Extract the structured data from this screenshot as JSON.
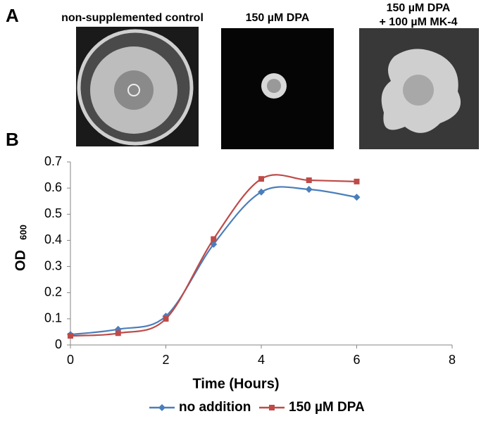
{
  "panel_a": {
    "label": "A",
    "images": [
      {
        "caption": [
          "non-supplemented control"
        ]
      },
      {
        "caption": [
          "150 µM DPA"
        ]
      },
      {
        "caption": [
          "150 µM DPA",
          "+ 100 µM MK-4"
        ]
      }
    ]
  },
  "chart_data": {
    "type": "line",
    "panel_label": "B",
    "xlabel": "Time (Hours)",
    "ylabel": "OD",
    "ylabel_sub": "600",
    "x": [
      0,
      1,
      2,
      3,
      4,
      5,
      6
    ],
    "series": [
      {
        "name": "no addition",
        "color": "#4a7ebb",
        "marker": "diamond",
        "values": [
          0.04,
          0.06,
          0.11,
          0.385,
          0.585,
          0.595,
          0.565
        ]
      },
      {
        "name": "150 µM DPA",
        "color": "#be4b48",
        "marker": "square",
        "values": [
          0.035,
          0.045,
          0.1,
          0.405,
          0.635,
          0.63,
          0.625
        ]
      }
    ],
    "xlim": [
      0,
      8
    ],
    "xticks": [
      0,
      2,
      4,
      6,
      8
    ],
    "ylim": [
      0,
      0.7
    ],
    "yticks": [
      0,
      0.1,
      0.2,
      0.3,
      0.4,
      0.5,
      0.6,
      0.7
    ],
    "legend": "bottom",
    "smooth": true
  }
}
